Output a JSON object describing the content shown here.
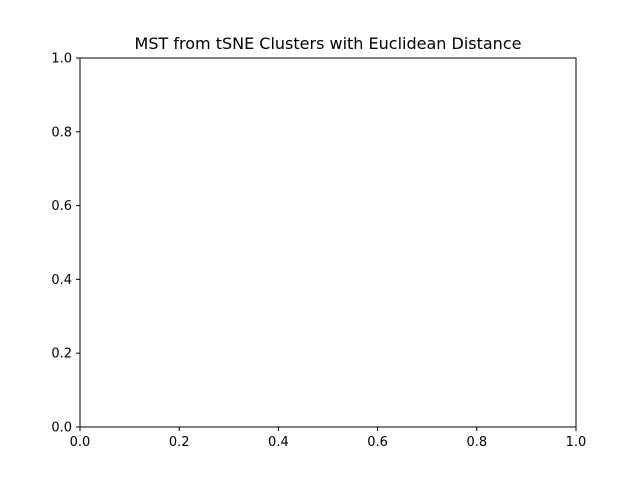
{
  "chart_data": {
    "type": "scatter",
    "title": "MST from tSNE Clusters with Euclidean Distance",
    "xlabel": "",
    "ylabel": "",
    "xlim": [
      0.0,
      1.0
    ],
    "ylim": [
      0.0,
      1.0
    ],
    "xticks": [
      0.0,
      0.2,
      0.4,
      0.6,
      0.8,
      1.0
    ],
    "yticks": [
      0.0,
      0.2,
      0.4,
      0.6,
      0.8,
      1.0
    ],
    "xtick_labels": [
      "0.0",
      "0.2",
      "0.4",
      "0.6",
      "0.8",
      "1.0"
    ],
    "ytick_labels": [
      "0.0",
      "0.2",
      "0.4",
      "0.6",
      "0.8",
      "1.0"
    ],
    "grid": false,
    "legend": "none",
    "series": []
  }
}
